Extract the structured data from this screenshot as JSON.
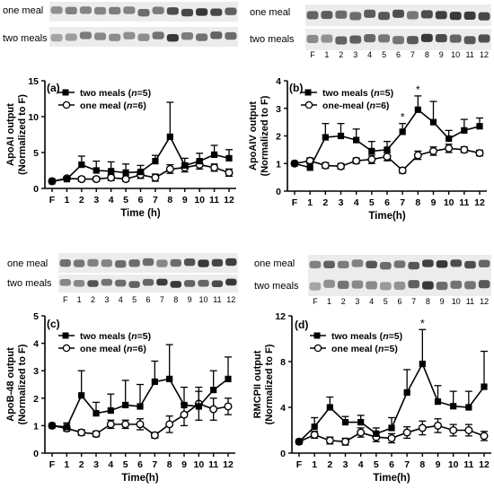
{
  "chart_data": [
    {
      "type": "line",
      "panel_label": "(a)",
      "ylabel": [
        "ApoAI output",
        "(Normalized to F)"
      ],
      "xlabel": "Time (h)",
      "categories": [
        "F",
        "1",
        "2",
        "3",
        "4",
        "5",
        "6",
        "7",
        "8",
        "9",
        "10",
        "11",
        "12"
      ],
      "ylim": [
        0,
        15
      ],
      "yticks": [
        0,
        5,
        10,
        15
      ],
      "blot_labels": [
        "one meal",
        "two meals"
      ],
      "blot_lanes": [
        "F",
        "1",
        "2",
        "3",
        "4",
        "5",
        "6",
        "7",
        "8",
        "9",
        "10",
        "11",
        "12"
      ],
      "blot_order": [
        "one",
        "two"
      ],
      "blot_lanes_shown": false,
      "legend": [
        {
          "name": "two meals (n=5)",
          "marker": "square"
        },
        {
          "name": "one meal (n=6)",
          "marker": "circle"
        }
      ],
      "series": [
        {
          "name": "two meals (n=5)",
          "marker": "square",
          "values": [
            1.0,
            1.3,
            3.3,
            2.5,
            2.4,
            2.2,
            2.3,
            3.8,
            7.2,
            3.2,
            3.8,
            4.7,
            4.2
          ],
          "errors": [
            0,
            0.3,
            1.2,
            1.3,
            1.3,
            1.2,
            0.9,
            0.8,
            4.8,
            1.0,
            1.1,
            1.3,
            1.2
          ]
        },
        {
          "name": "one meal (n=6)",
          "marker": "circle",
          "values": [
            1.0,
            1.4,
            1.3,
            1.3,
            1.5,
            1.3,
            1.9,
            1.5,
            2.7,
            2.9,
            3.3,
            2.9,
            2.2
          ],
          "errors": [
            0,
            0.2,
            0.3,
            0.3,
            0.4,
            0.3,
            0.5,
            0.5,
            0.6,
            0.6,
            0.6,
            0.5,
            0.5
          ]
        }
      ],
      "annotations": []
    },
    {
      "type": "line",
      "panel_label": "(b)",
      "ylabel": [
        "ApoAIV output",
        "(Normalized to F)"
      ],
      "xlabel": "Time(h)",
      "categories": [
        "F",
        "1",
        "2",
        "3",
        "4",
        "5",
        "6",
        "7",
        "8",
        "9",
        "10",
        "11",
        "12"
      ],
      "ylim": [
        0,
        4
      ],
      "yticks": [
        0,
        1,
        2,
        3,
        4
      ],
      "blot_labels": [
        "one meal",
        "two meals"
      ],
      "blot_lanes": [
        "F",
        "1",
        "2",
        "3",
        "4",
        "5",
        "6",
        "7",
        "8",
        "9",
        "10",
        "11",
        "12"
      ],
      "blot_order": [
        "one",
        "two"
      ],
      "blot_lanes_shown": true,
      "legend": [
        {
          "name": "two meals (n=5)",
          "marker": "square"
        },
        {
          "name": "one-meal (n=6)",
          "marker": "circle"
        }
      ],
      "series": [
        {
          "name": "two meals (n=5)",
          "marker": "square",
          "values": [
            1.0,
            0.85,
            1.95,
            2.0,
            1.85,
            1.45,
            1.5,
            2.15,
            2.95,
            2.5,
            1.9,
            2.2,
            2.35
          ],
          "errors": [
            0,
            0.15,
            0.5,
            0.45,
            0.4,
            0.35,
            0.3,
            0.3,
            0.5,
            0.75,
            0.3,
            0.4,
            0.3
          ]
        },
        {
          "name": "one-meal (n=6)",
          "marker": "circle",
          "values": [
            1.0,
            1.1,
            0.93,
            0.9,
            1.1,
            1.15,
            1.25,
            0.75,
            1.3,
            1.45,
            1.55,
            1.5,
            1.38
          ],
          "errors": [
            0,
            0.1,
            0.1,
            0.1,
            0.1,
            0.15,
            0.15,
            0.1,
            0.15,
            0.15,
            0.15,
            0.1,
            0.1
          ]
        }
      ],
      "annotations": [
        {
          "x": "7",
          "text": "*"
        },
        {
          "x": "8",
          "text": "*"
        }
      ]
    },
    {
      "type": "line",
      "panel_label": "(c)",
      "ylabel": [
        "ApoB-48 output",
        "(Normalized to F)"
      ],
      "xlabel": "Time(h)",
      "categories": [
        "F",
        "1",
        "2",
        "3",
        "4",
        "5",
        "6",
        "7",
        "8",
        "9",
        "10",
        "11",
        "12"
      ],
      "ylim": [
        0,
        5
      ],
      "yticks": [
        0,
        1,
        2,
        3,
        4,
        5
      ],
      "blot_labels": [
        "one meal",
        "two meals"
      ],
      "blot_lanes": [
        "F",
        "1",
        "2",
        "3",
        "4",
        "5",
        "6",
        "7",
        "8",
        "9",
        "10",
        "11",
        "12"
      ],
      "blot_order": [
        "one",
        "two"
      ],
      "blot_lanes_shown": true,
      "legend": [
        {
          "name": "two meals (n=5)",
          "marker": "square"
        },
        {
          "name": "one meal (n=6)",
          "marker": "circle"
        }
      ],
      "series": [
        {
          "name": "two meals (n=5)",
          "marker": "square",
          "values": [
            1.0,
            0.95,
            2.1,
            1.45,
            1.55,
            1.75,
            1.7,
            2.6,
            2.7,
            1.75,
            1.7,
            2.3,
            2.7
          ],
          "errors": [
            0,
            0.15,
            0.9,
            0.4,
            0.6,
            0.9,
            0.8,
            0.75,
            1.25,
            0.65,
            0.55,
            0.7,
            0.8
          ]
        },
        {
          "name": "one meal (n=6)",
          "marker": "circle",
          "values": [
            1.0,
            0.9,
            0.75,
            0.7,
            1.05,
            1.05,
            1.05,
            0.65,
            1.05,
            1.4,
            1.8,
            1.6,
            1.7
          ],
          "errors": [
            0,
            0.1,
            0.1,
            0.1,
            0.15,
            0.15,
            0.2,
            0.1,
            0.3,
            0.4,
            0.6,
            0.4,
            0.3
          ]
        }
      ],
      "annotations": []
    },
    {
      "type": "line",
      "panel_label": "(d)",
      "ylabel": [
        "RMCPII output",
        "(Normalized to F)"
      ],
      "xlabel": "Time(h)",
      "categories": [
        "F",
        "1",
        "2",
        "3",
        "4",
        "5",
        "6",
        "7",
        "8",
        "9",
        "10",
        "11",
        "12"
      ],
      "ylim": [
        0,
        12
      ],
      "yticks": [
        0,
        4,
        8,
        12
      ],
      "blot_labels": [
        "one meal",
        "two meals"
      ],
      "blot_lanes": [
        "F",
        "1",
        "2",
        "3",
        "4",
        "5",
        "6",
        "7",
        "8",
        "9",
        "10",
        "11",
        "12"
      ],
      "blot_order": [
        "one",
        "two"
      ],
      "blot_lanes_shown": true,
      "legend": [
        {
          "name": "two meals (n=5)",
          "marker": "square"
        },
        {
          "name": "one meal (n=5)",
          "marker": "circle"
        }
      ],
      "series": [
        {
          "name": "two meals (n=5)",
          "marker": "square",
          "values": [
            1.0,
            2.3,
            4.0,
            2.7,
            2.7,
            1.7,
            2.2,
            5.3,
            7.8,
            4.5,
            4.1,
            4.0,
            5.8
          ],
          "errors": [
            0,
            0.8,
            0.9,
            0.5,
            0.6,
            0.5,
            0.9,
            2.0,
            3.0,
            1.4,
            1.3,
            1.4,
            3.1
          ]
        },
        {
          "name": "one meal (n=5)",
          "marker": "circle",
          "values": [
            1.0,
            1.6,
            1.1,
            1.0,
            1.8,
            1.4,
            1.3,
            1.8,
            2.2,
            2.4,
            2.0,
            2.0,
            1.5
          ],
          "errors": [
            0,
            0.3,
            0.3,
            0.3,
            0.4,
            0.4,
            0.4,
            0.5,
            0.6,
            0.6,
            0.5,
            0.5,
            0.4
          ]
        }
      ],
      "annotations": [
        {
          "x": "8",
          "text": "*"
        }
      ]
    }
  ]
}
